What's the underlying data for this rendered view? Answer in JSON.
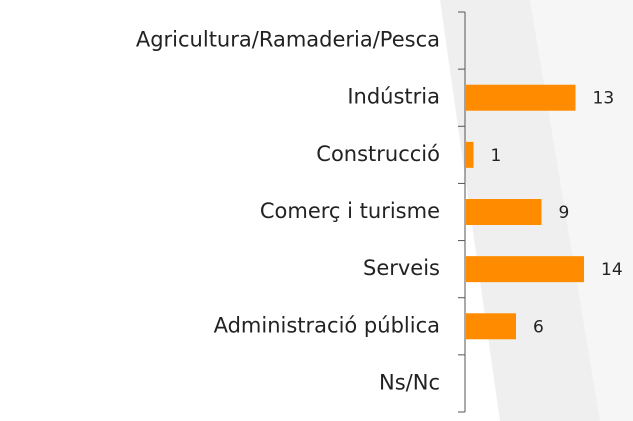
{
  "chart_data": {
    "type": "bar",
    "orientation": "horizontal",
    "categories": [
      "Agricultura/Ramaderia/Pesca",
      "Indústria",
      "Construcció",
      "Comerç i turisme",
      "Serveis",
      "Administració pública",
      "Ns/Nc"
    ],
    "values": [
      0,
      13,
      1,
      9,
      14,
      6,
      0
    ],
    "color": "#ff8c00"
  }
}
